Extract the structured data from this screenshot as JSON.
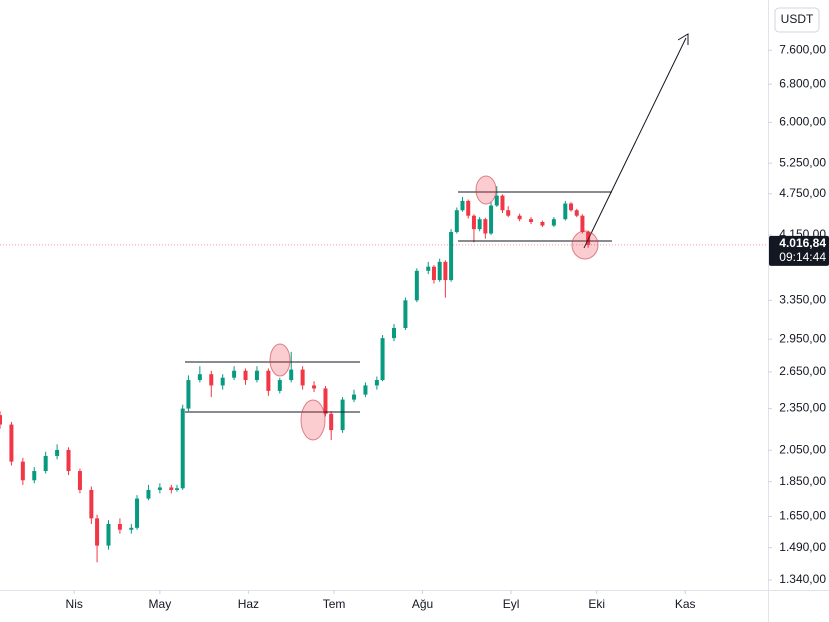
{
  "chart_data": {
    "type": "candlestick",
    "currency": "USDT",
    "log_scale": true,
    "grid": false,
    "up_color": "#089981",
    "down_color": "#f23645",
    "xlim": [
      -26,
      243
    ],
    "xticks": [
      {
        "value": 0,
        "label": "Nis"
      },
      {
        "value": 30,
        "label": "May"
      },
      {
        "value": 61,
        "label": "Haz"
      },
      {
        "value": 91,
        "label": "Tem"
      },
      {
        "value": 122,
        "label": "Ağu"
      },
      {
        "value": 153,
        "label": "Eyl"
      },
      {
        "value": 183,
        "label": "Eki"
      },
      {
        "value": 214,
        "label": "Kas"
      }
    ],
    "ylim": [
      1297,
      8960
    ],
    "yticks": [
      {
        "value": 7600,
        "label": "7.600,00"
      },
      {
        "value": 6800,
        "label": "6.800,00"
      },
      {
        "value": 6000,
        "label": "6.000,00"
      },
      {
        "value": 5250,
        "label": "5.250,00"
      },
      {
        "value": 4750,
        "label": "4.750,00"
      },
      {
        "value": 4150,
        "label": "4.150,00"
      },
      {
        "value": 3350,
        "label": "3.350,00"
      },
      {
        "value": 2950,
        "label": "2.950,00"
      },
      {
        "value": 2650,
        "label": "2.650,00"
      },
      {
        "value": 2350,
        "label": "2.350,00"
      },
      {
        "value": 2050,
        "label": "2.050,00"
      },
      {
        "value": 1850,
        "label": "1.850,00"
      },
      {
        "value": 1650,
        "label": "1.650,00"
      },
      {
        "value": 1490,
        "label": "1.490,00"
      },
      {
        "value": 1340,
        "label": "1.340,00"
      }
    ],
    "last_price": {
      "value": 4016.84,
      "label": "4.016,84"
    },
    "countdown": "09:14:44",
    "x": [
      -26,
      -22,
      -18,
      -14,
      -10,
      -6,
      -2,
      2,
      6,
      8,
      12,
      16,
      20,
      22,
      26,
      30,
      34,
      36,
      38,
      40,
      44,
      48,
      52,
      56,
      60,
      64,
      68,
      72,
      76,
      80,
      84,
      88,
      90,
      94,
      98,
      102,
      106,
      108,
      112,
      116,
      120,
      124,
      126,
      128,
      130,
      132,
      134,
      136,
      138,
      140,
      142,
      144,
      146,
      148,
      150,
      152,
      156,
      160,
      164,
      168,
      172,
      174,
      176,
      178,
      180
    ],
    "open": [
      2300,
      2230,
      1975,
      1858,
      1915,
      2012,
      2052,
      1915,
      1800,
      1640,
      1500,
      1610,
      1580,
      1590,
      1750,
      1800,
      1815,
      1800,
      1810,
      2350,
      2580,
      2630,
      2535,
      2600,
      2660,
      2580,
      2660,
      2490,
      2580,
      2670,
      2535,
      2510,
      2310,
      2190,
      2420,
      2460,
      2535,
      2580,
      2960,
      3060,
      3350,
      3690,
      3740,
      3580,
      3800,
      3580,
      4190,
      4500,
      4640,
      4420,
      4230,
      4370,
      4170,
      4570,
      4720,
      4500,
      4420,
      4370,
      4330,
      4280,
      4370,
      4600,
      4500,
      4420,
      4190
    ],
    "high": [
      2330,
      2250,
      2000,
      1940,
      2040,
      2090,
      2070,
      1930,
      1820,
      1660,
      1630,
      1640,
      1610,
      1770,
      1830,
      1840,
      1830,
      1830,
      2380,
      2620,
      2700,
      2660,
      2630,
      2700,
      2680,
      2700,
      2680,
      2600,
      2830,
      2700,
      2570,
      2530,
      2330,
      2440,
      2500,
      2560,
      2610,
      2990,
      3100,
      3380,
      3720,
      3800,
      3760,
      3840,
      3820,
      4230,
      4540,
      4700,
      4660,
      4440,
      4400,
      4390,
      4620,
      4870,
      4740,
      4560,
      4450,
      4400,
      4350,
      4400,
      4640,
      4620,
      4520,
      4440,
      4210
    ],
    "low": [
      2200,
      1950,
      1830,
      1840,
      1900,
      1990,
      1890,
      1780,
      1610,
      1420,
      1480,
      1560,
      1560,
      1580,
      1740,
      1780,
      1780,
      1790,
      1800,
      2330,
      2560,
      2440,
      2500,
      2580,
      2540,
      2560,
      2450,
      2470,
      2560,
      2500,
      2480,
      2290,
      2120,
      2170,
      2400,
      2440,
      2500,
      2570,
      2930,
      3040,
      3330,
      3650,
      3540,
      3560,
      3380,
      3560,
      4170,
      4480,
      4380,
      4050,
      4200,
      4100,
      4150,
      4550,
      4460,
      4400,
      4340,
      4300,
      4260,
      4260,
      4350,
      4480,
      4400,
      4170,
      3980
    ],
    "close": [
      2230,
      1975,
      1858,
      1915,
      2012,
      2052,
      1915,
      1800,
      1640,
      1500,
      1610,
      1580,
      1590,
      1750,
      1800,
      1815,
      1800,
      1810,
      2350,
      2580,
      2630,
      2535,
      2600,
      2660,
      2580,
      2660,
      2490,
      2580,
      2670,
      2535,
      2510,
      2310,
      2190,
      2420,
      2460,
      2535,
      2580,
      2960,
      3060,
      3350,
      3690,
      3740,
      3580,
      3800,
      3580,
      4190,
      4500,
      4640,
      4420,
      4230,
      4370,
      4170,
      4570,
      4720,
      4500,
      4420,
      4370,
      4330,
      4280,
      4370,
      4600,
      4500,
      4420,
      4190,
      4016.84
    ]
  }
}
